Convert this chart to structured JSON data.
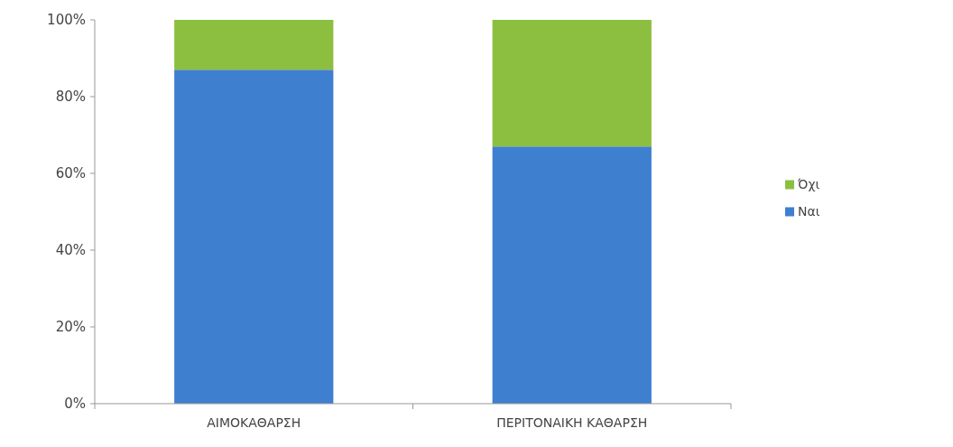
{
  "chart_data": {
    "type": "bar",
    "stacked": true,
    "categories": [
      "ΑΙΜΟΚΑΘΑΡΣΗ",
      "ΠΕΡΙΤΟΝΑΙΚΗ ΚΑΘΑΡΣΗ"
    ],
    "series": [
      {
        "name": "Ναι",
        "color": "#3f7fcf",
        "values": [
          87,
          67
        ]
      },
      {
        "name": "Όχι",
        "color": "#8cbf3f",
        "values": [
          13,
          33
        ]
      }
    ],
    "ylim": [
      0,
      100
    ],
    "yticks": [
      {
        "value": 0,
        "label": "0%"
      },
      {
        "value": 20,
        "label": "20%"
      },
      {
        "value": 40,
        "label": "40%"
      },
      {
        "value": 60,
        "label": "60%"
      },
      {
        "value": 80,
        "label": "80%"
      },
      {
        "value": 100,
        "label": "100%"
      }
    ],
    "grid": false,
    "legend": "right"
  }
}
